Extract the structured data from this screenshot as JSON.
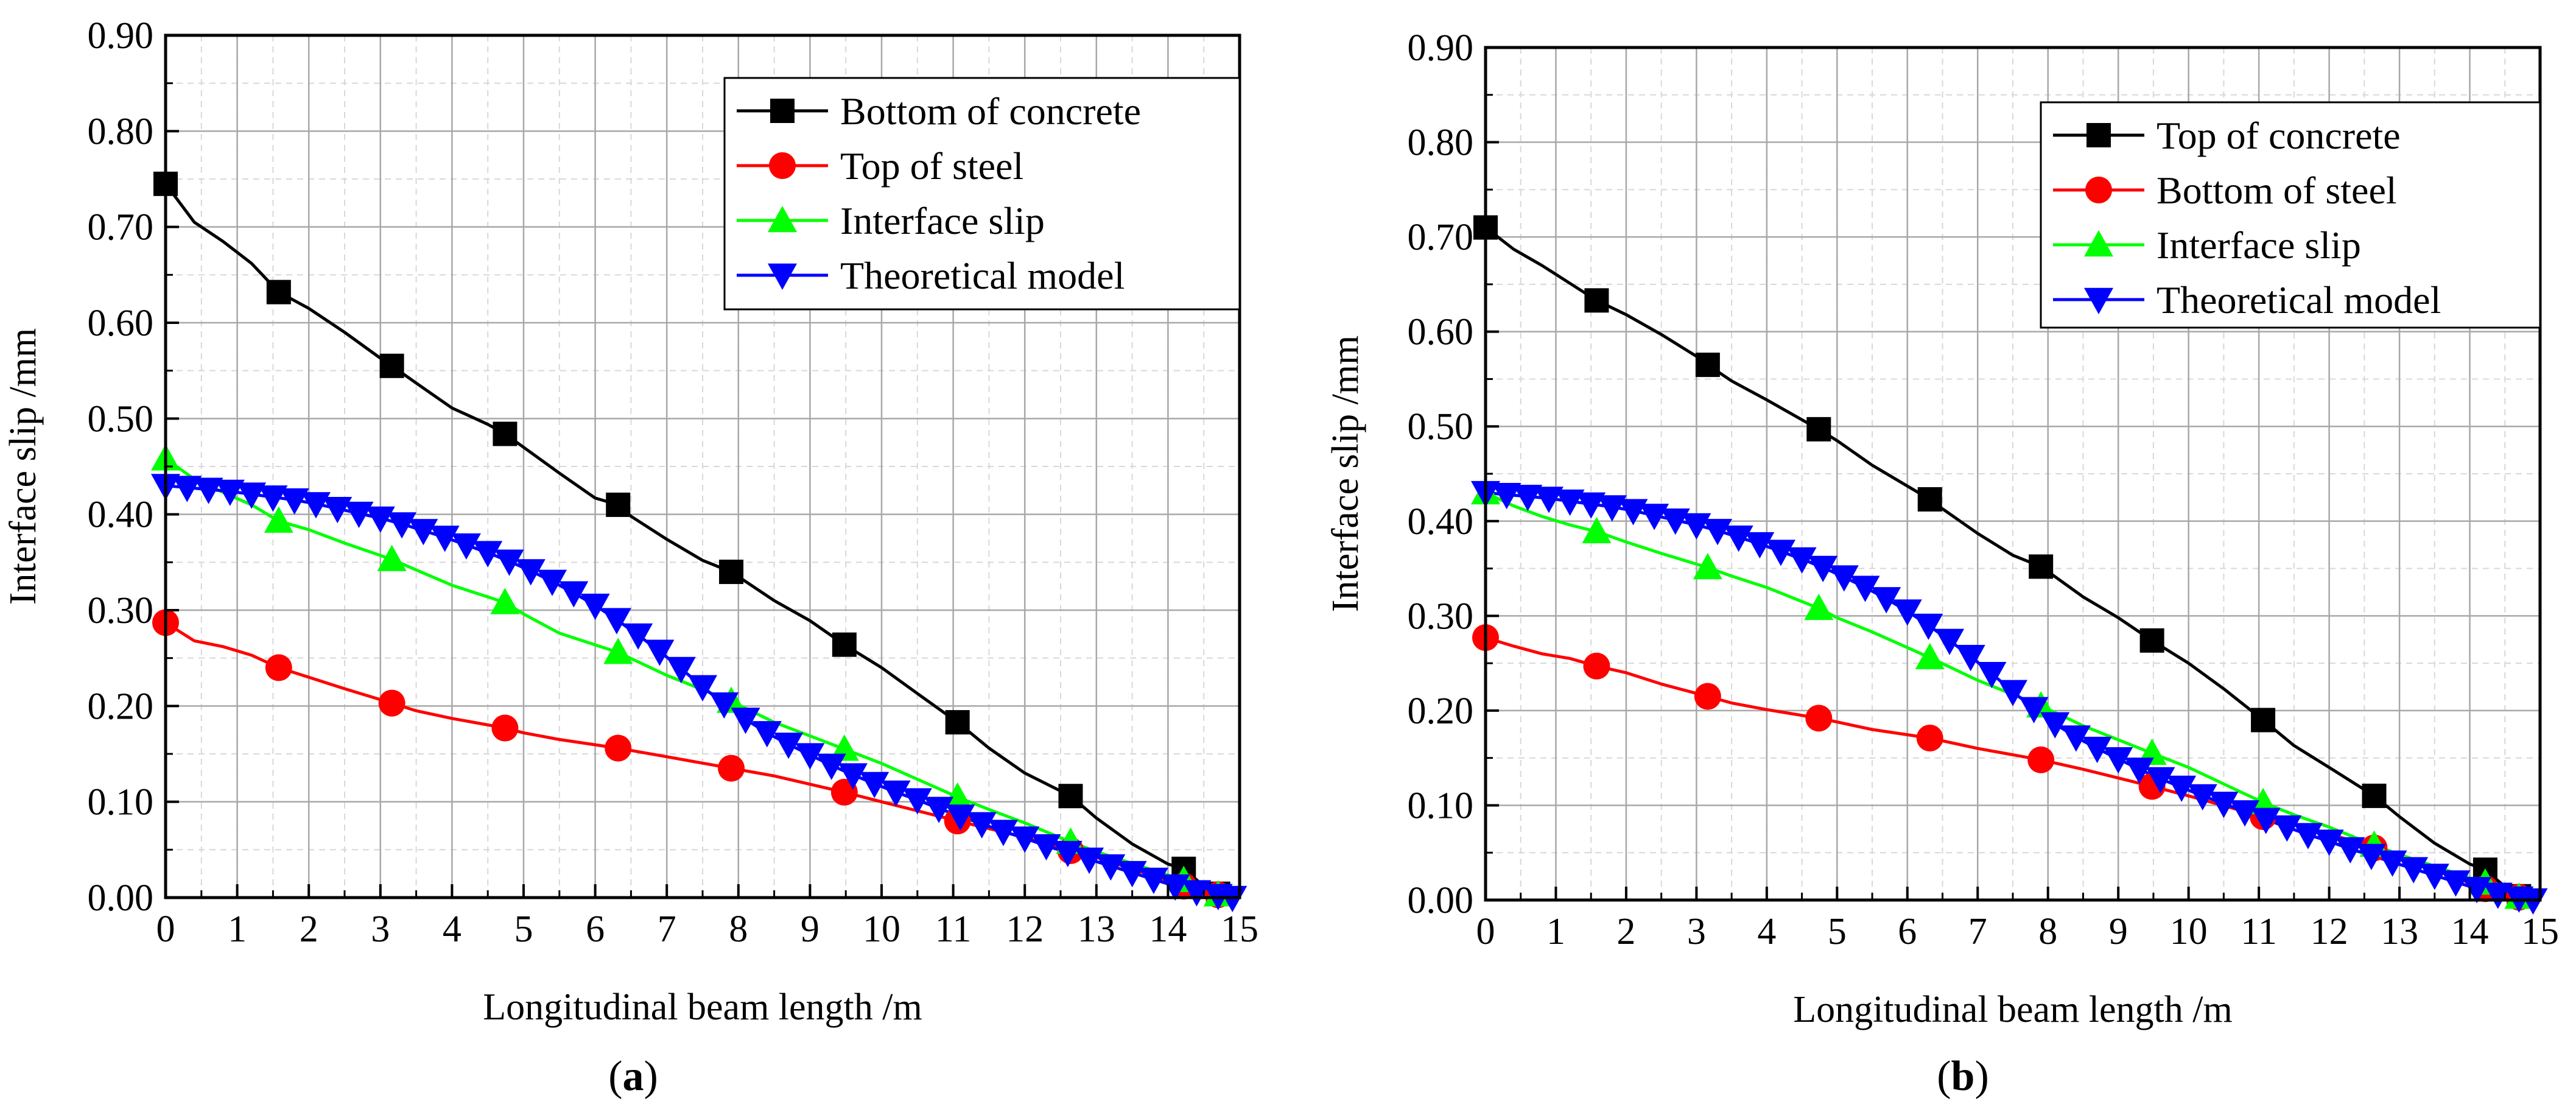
{
  "chart_data": [
    {
      "panel_label": "a",
      "type": "line",
      "xlabel": "Longitudinal beam length /m",
      "ylabel": "Interface slip /mm",
      "xlim": [
        0,
        15
      ],
      "ylim": [
        0,
        0.9
      ],
      "x_ticks": [
        "0",
        "1",
        "2",
        "3",
        "4",
        "5",
        "6",
        "7",
        "8",
        "9",
        "10",
        "11",
        "12",
        "13",
        "14",
        "15"
      ],
      "y_ticks": [
        "0.00",
        "0.10",
        "0.20",
        "0.30",
        "0.40",
        "0.50",
        "0.60",
        "0.70",
        "0.80",
        "0.90"
      ],
      "grid": true,
      "legend_position": "top-right",
      "series": [
        {
          "name": "Bottom of concrete",
          "color": "#000000",
          "marker": "square",
          "x": [
            0,
            0.4,
            0.8,
            1.2,
            1.58,
            2.0,
            2.5,
            3.0,
            3.16,
            3.5,
            4.0,
            4.5,
            4.74,
            5.0,
            5.5,
            6.0,
            6.32,
            6.5,
            7.0,
            7.5,
            7.9,
            8.5,
            9.0,
            9.48,
            10.0,
            10.5,
            11.06,
            11.5,
            12.0,
            12.64,
            13.0,
            13.5,
            14.0,
            14.22,
            14.5,
            14.8
          ],
          "y": [
            0.745,
            0.705,
            0.685,
            0.662,
            0.632,
            0.615,
            0.59,
            0.563,
            0.555,
            0.537,
            0.511,
            0.494,
            0.484,
            0.47,
            0.443,
            0.417,
            0.41,
            0.398,
            0.374,
            0.352,
            0.34,
            0.31,
            0.289,
            0.264,
            0.24,
            0.213,
            0.183,
            0.156,
            0.13,
            0.106,
            0.083,
            0.056,
            0.035,
            0.03,
            0.012,
            0.002
          ],
          "marker_x": [
            0,
            1.58,
            3.16,
            4.74,
            6.32,
            7.9,
            9.48,
            11.06,
            12.64,
            14.22,
            14.7
          ],
          "marker_y": [
            0.745,
            0.632,
            0.555,
            0.484,
            0.41,
            0.34,
            0.264,
            0.183,
            0.106,
            0.03,
            0.004
          ]
        },
        {
          "name": "Top of steel",
          "color": "#ff0000",
          "marker": "circle",
          "x": [
            0,
            0.4,
            0.8,
            1.2,
            1.58,
            2.0,
            2.5,
            3.16,
            3.5,
            4.0,
            4.74,
            5.0,
            5.5,
            6.32,
            7.0,
            7.9,
            8.5,
            9.48,
            10.0,
            11.06,
            11.5,
            12.0,
            12.64,
            13.0,
            14.22,
            14.8
          ],
          "y": [
            0.287,
            0.268,
            0.262,
            0.253,
            0.24,
            0.23,
            0.218,
            0.203,
            0.195,
            0.187,
            0.177,
            0.172,
            0.165,
            0.156,
            0.147,
            0.135,
            0.127,
            0.11,
            0.1,
            0.08,
            0.072,
            0.063,
            0.049,
            0.042,
            0.012,
            0.002
          ],
          "marker_x": [
            0,
            1.58,
            3.16,
            4.74,
            6.32,
            7.9,
            9.48,
            11.06,
            12.64,
            14.22,
            14.7
          ],
          "marker_y": [
            0.287,
            0.24,
            0.203,
            0.177,
            0.156,
            0.135,
            0.11,
            0.08,
            0.049,
            0.012,
            0.003
          ]
        },
        {
          "name": "Interface slip",
          "color": "#00ff00",
          "marker": "triangle-up",
          "x": [
            0,
            0.4,
            0.8,
            1.2,
            1.58,
            2.0,
            2.5,
            3.16,
            3.5,
            4.0,
            4.74,
            5.0,
            5.5,
            6.32,
            7.0,
            7.9,
            8.5,
            9.48,
            10.0,
            11.06,
            11.5,
            12.0,
            12.64,
            13.0,
            14.22,
            14.8
          ],
          "y": [
            0.458,
            0.437,
            0.423,
            0.41,
            0.393,
            0.384,
            0.37,
            0.353,
            0.342,
            0.326,
            0.308,
            0.296,
            0.276,
            0.256,
            0.232,
            0.205,
            0.183,
            0.155,
            0.14,
            0.105,
            0.092,
            0.078,
            0.058,
            0.048,
            0.018,
            0.002
          ],
          "marker_x": [
            0,
            1.58,
            3.16,
            4.74,
            6.32,
            7.9,
            9.48,
            11.06,
            12.64,
            14.22,
            14.7
          ],
          "marker_y": [
            0.458,
            0.393,
            0.353,
            0.308,
            0.256,
            0.205,
            0.155,
            0.105,
            0.058,
            0.018,
            0.003
          ]
        },
        {
          "name": "Theoretical model",
          "color": "#0000ff",
          "marker": "triangle-down",
          "x": [
            0,
            0.3,
            0.6,
            0.9,
            1.2,
            1.5,
            1.8,
            2.1,
            2.4,
            2.7,
            3.0,
            3.3,
            3.6,
            3.9,
            4.2,
            4.5,
            4.8,
            5.1,
            5.4,
            5.7,
            6.0,
            6.3,
            6.6,
            6.9,
            7.2,
            7.5,
            7.8,
            8.1,
            8.4,
            8.7,
            9.0,
            9.3,
            9.6,
            9.9,
            10.2,
            10.5,
            10.8,
            11.1,
            11.4,
            11.7,
            12.0,
            12.3,
            12.6,
            12.9,
            13.2,
            13.5,
            13.8,
            14.1,
            14.4,
            14.7,
            14.9
          ],
          "y": [
            0.43,
            0.428,
            0.426,
            0.424,
            0.421,
            0.418,
            0.415,
            0.411,
            0.406,
            0.401,
            0.396,
            0.39,
            0.383,
            0.376,
            0.368,
            0.36,
            0.351,
            0.341,
            0.33,
            0.318,
            0.305,
            0.29,
            0.274,
            0.257,
            0.239,
            0.22,
            0.202,
            0.186,
            0.172,
            0.16,
            0.149,
            0.138,
            0.128,
            0.119,
            0.11,
            0.102,
            0.093,
            0.085,
            0.077,
            0.069,
            0.062,
            0.054,
            0.047,
            0.04,
            0.033,
            0.026,
            0.019,
            0.012,
            0.006,
            0.002,
            0.0
          ]
        }
      ]
    },
    {
      "panel_label": "b",
      "type": "line",
      "xlabel": "Longitudinal beam length /m",
      "ylabel": "Interface slip /mm",
      "xlim": [
        0,
        15
      ],
      "ylim": [
        0,
        0.9
      ],
      "x_ticks": [
        "0",
        "1",
        "2",
        "3",
        "4",
        "5",
        "6",
        "7",
        "8",
        "9",
        "10",
        "11",
        "12",
        "13",
        "14",
        "15"
      ],
      "y_ticks": [
        "0.00",
        "0.10",
        "0.20",
        "0.30",
        "0.40",
        "0.50",
        "0.60",
        "0.70",
        "0.80",
        "0.90"
      ],
      "grid": true,
      "legend_position": "top-right",
      "series": [
        {
          "name": "Top of concrete",
          "color": "#000000",
          "marker": "square",
          "x": [
            0,
            0.4,
            0.8,
            1.2,
            1.58,
            2.0,
            2.5,
            3.0,
            3.16,
            3.5,
            4.0,
            4.5,
            4.74,
            5.0,
            5.5,
            6.0,
            6.32,
            6.5,
            7.0,
            7.5,
            7.9,
            8.5,
            9.0,
            9.48,
            10.0,
            10.5,
            11.06,
            11.5,
            12.0,
            12.64,
            13.0,
            13.5,
            14.0,
            14.22,
            14.5,
            14.8
          ],
          "y": [
            0.71,
            0.687,
            0.67,
            0.651,
            0.633,
            0.618,
            0.597,
            0.574,
            0.565,
            0.548,
            0.528,
            0.507,
            0.497,
            0.485,
            0.459,
            0.437,
            0.423,
            0.413,
            0.387,
            0.364,
            0.352,
            0.32,
            0.298,
            0.274,
            0.25,
            0.223,
            0.19,
            0.163,
            0.14,
            0.11,
            0.088,
            0.06,
            0.038,
            0.032,
            0.014,
            0.002
          ],
          "marker_x": [
            0,
            1.58,
            3.16,
            4.74,
            6.32,
            7.9,
            9.48,
            11.06,
            12.64,
            14.22,
            14.7
          ],
          "marker_y": [
            0.71,
            0.633,
            0.565,
            0.497,
            0.423,
            0.352,
            0.274,
            0.19,
            0.11,
            0.032,
            0.004
          ]
        },
        {
          "name": "Bottom of steel",
          "color": "#ff0000",
          "marker": "circle",
          "x": [
            0,
            0.4,
            0.8,
            1.2,
            1.58,
            2.0,
            2.5,
            3.16,
            3.5,
            4.0,
            4.74,
            5.0,
            5.5,
            6.32,
            7.0,
            7.9,
            8.5,
            9.48,
            10.0,
            11.06,
            11.5,
            12.0,
            12.64,
            13.0,
            14.22,
            14.8
          ],
          "y": [
            0.277,
            0.268,
            0.26,
            0.255,
            0.247,
            0.24,
            0.228,
            0.215,
            0.208,
            0.201,
            0.192,
            0.188,
            0.18,
            0.171,
            0.16,
            0.148,
            0.138,
            0.12,
            0.11,
            0.088,
            0.08,
            0.07,
            0.055,
            0.045,
            0.012,
            0.002
          ],
          "marker_x": [
            0,
            1.58,
            3.16,
            4.74,
            6.32,
            7.9,
            9.48,
            11.06,
            12.64,
            14.22,
            14.7
          ],
          "marker_y": [
            0.277,
            0.247,
            0.215,
            0.192,
            0.171,
            0.148,
            0.12,
            0.088,
            0.055,
            0.012,
            0.003
          ]
        },
        {
          "name": "Interface slip",
          "color": "#00ff00",
          "marker": "triangle-up",
          "x": [
            0,
            0.4,
            0.8,
            1.2,
            1.58,
            2.0,
            2.5,
            3.16,
            3.5,
            4.0,
            4.74,
            5.0,
            5.5,
            6.32,
            7.0,
            7.9,
            8.5,
            9.48,
            10.0,
            11.06,
            11.5,
            12.0,
            12.64,
            13.0,
            14.22,
            14.8
          ],
          "y": [
            0.43,
            0.416,
            0.405,
            0.396,
            0.389,
            0.378,
            0.366,
            0.351,
            0.342,
            0.33,
            0.308,
            0.298,
            0.283,
            0.256,
            0.232,
            0.205,
            0.184,
            0.155,
            0.14,
            0.103,
            0.09,
            0.077,
            0.058,
            0.048,
            0.018,
            0.002
          ],
          "marker_x": [
            0,
            1.58,
            3.16,
            4.74,
            6.32,
            7.9,
            9.48,
            11.06,
            12.64,
            14.22,
            14.7
          ],
          "marker_y": [
            0.43,
            0.389,
            0.351,
            0.308,
            0.256,
            0.205,
            0.155,
            0.103,
            0.058,
            0.018,
            0.003
          ]
        },
        {
          "name": "Theoretical model",
          "color": "#0000ff",
          "marker": "triangle-down",
          "x": [
            0,
            0.3,
            0.6,
            0.9,
            1.2,
            1.5,
            1.8,
            2.1,
            2.4,
            2.7,
            3.0,
            3.3,
            3.6,
            3.9,
            4.2,
            4.5,
            4.8,
            5.1,
            5.4,
            5.7,
            6.0,
            6.3,
            6.6,
            6.9,
            7.2,
            7.5,
            7.8,
            8.1,
            8.4,
            8.7,
            9.0,
            9.3,
            9.6,
            9.9,
            10.2,
            10.5,
            10.8,
            11.1,
            11.4,
            11.7,
            12.0,
            12.3,
            12.6,
            12.9,
            13.2,
            13.5,
            13.8,
            14.1,
            14.4,
            14.7,
            14.9
          ],
          "y": [
            0.43,
            0.428,
            0.426,
            0.424,
            0.421,
            0.418,
            0.415,
            0.411,
            0.406,
            0.401,
            0.396,
            0.39,
            0.383,
            0.376,
            0.368,
            0.36,
            0.351,
            0.341,
            0.33,
            0.318,
            0.305,
            0.29,
            0.274,
            0.257,
            0.239,
            0.22,
            0.202,
            0.186,
            0.172,
            0.16,
            0.149,
            0.138,
            0.128,
            0.119,
            0.11,
            0.102,
            0.093,
            0.085,
            0.077,
            0.069,
            0.062,
            0.054,
            0.047,
            0.04,
            0.033,
            0.026,
            0.019,
            0.012,
            0.006,
            0.002,
            0.0
          ]
        }
      ]
    }
  ]
}
